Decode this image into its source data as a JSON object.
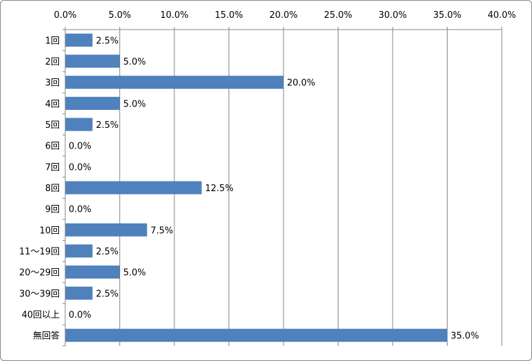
{
  "chart_data": {
    "type": "bar",
    "orientation": "horizontal",
    "title": "",
    "xlabel": "",
    "ylabel": "",
    "categories": [
      "1回",
      "2回",
      "3回",
      "4回",
      "5回",
      "6回",
      "7回",
      "8回",
      "9回",
      "10回",
      "11～19回",
      "20～29回",
      "30～39回",
      "40回以上",
      "無回答"
    ],
    "values": [
      2.5,
      5.0,
      20.0,
      5.0,
      2.5,
      0.0,
      0.0,
      12.5,
      0.0,
      7.5,
      2.5,
      5.0,
      2.5,
      0.0,
      35.0
    ],
    "value_labels": [
      "2.5%",
      "5.0%",
      "20.0%",
      "5.0%",
      "2.5%",
      "0.0%",
      "0.0%",
      "12.5%",
      "0.0%",
      "7.5%",
      "2.5%",
      "5.0%",
      "2.5%",
      "0.0%",
      "35.0%"
    ],
    "xlim": [
      0,
      40
    ],
    "x_ticks": [
      0,
      5,
      10,
      15,
      20,
      25,
      30,
      35,
      40
    ],
    "x_tick_labels": [
      "0.0%",
      "5.0%",
      "10.0%",
      "15.0%",
      "20.0%",
      "25.0%",
      "30.0%",
      "35.0%",
      "40.0%"
    ],
    "x_axis_position": "top",
    "grid": true,
    "legend": "none",
    "bar_color": "#4F81BD",
    "grid_color": "#868686"
  }
}
